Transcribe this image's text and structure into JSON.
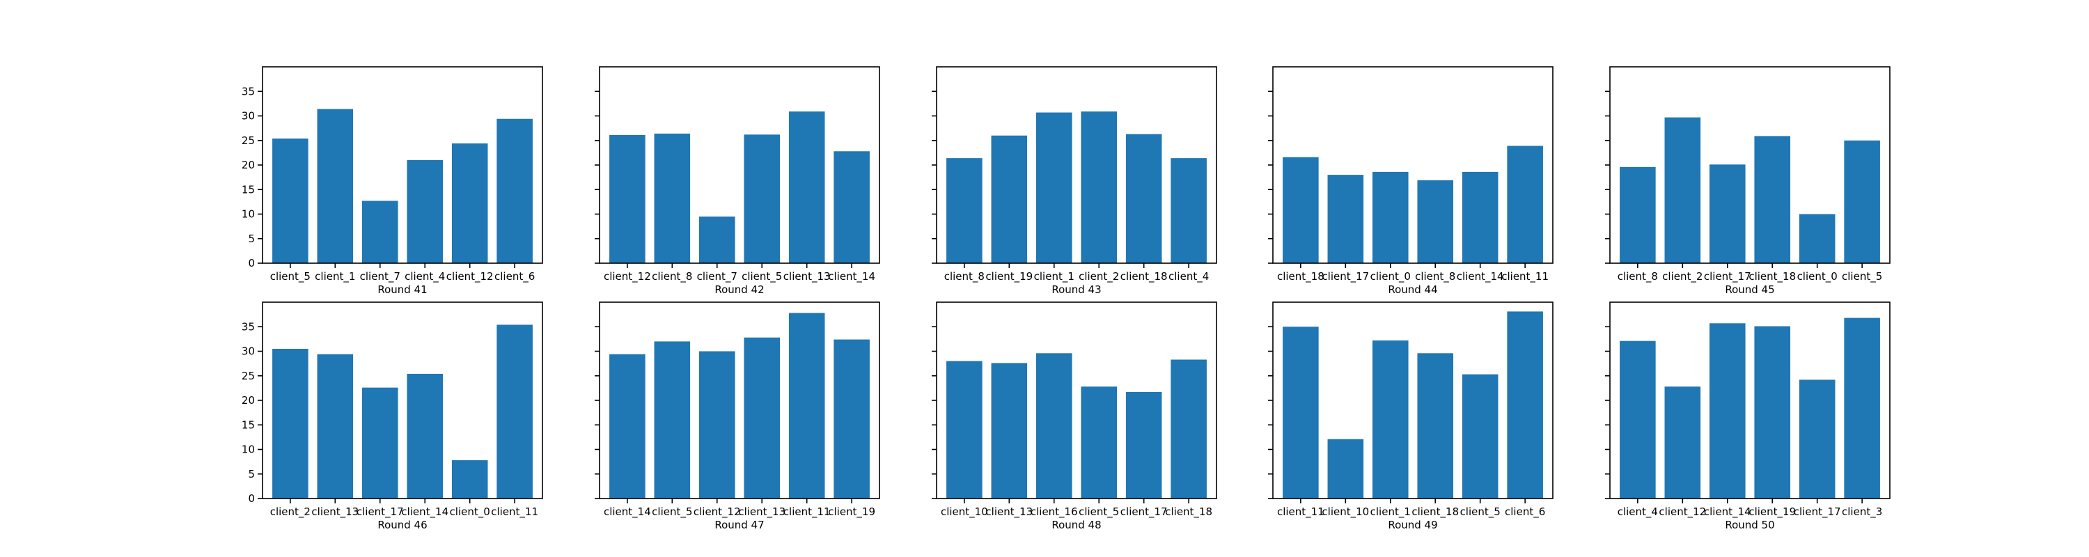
{
  "chart_data": [
    {
      "type": "bar",
      "xlabel": "Round 41",
      "categories": [
        "client_5",
        "client_1",
        "client_7",
        "client_4",
        "client_12",
        "client_6"
      ],
      "values": [
        25.4,
        31.4,
        12.7,
        21.0,
        24.4,
        29.4
      ],
      "ylim": [
        0,
        40
      ],
      "yticks": [
        0,
        5,
        10,
        15,
        20,
        25,
        30,
        35
      ],
      "show_ytick_labels": true
    },
    {
      "type": "bar",
      "xlabel": "Round 42",
      "categories": [
        "client_12",
        "client_8",
        "client_7",
        "client_5",
        "client_13",
        "client_14"
      ],
      "values": [
        26.1,
        26.4,
        9.5,
        26.2,
        30.9,
        22.8
      ],
      "ylim": [
        0,
        40
      ],
      "yticks": [
        0,
        5,
        10,
        15,
        20,
        25,
        30,
        35
      ],
      "show_ytick_labels": false
    },
    {
      "type": "bar",
      "xlabel": "Round 43",
      "categories": [
        "client_8",
        "client_19",
        "client_1",
        "client_2",
        "client_18",
        "client_4"
      ],
      "values": [
        21.4,
        26.0,
        30.7,
        30.9,
        26.3,
        21.4
      ],
      "ylim": [
        0,
        40
      ],
      "yticks": [
        0,
        5,
        10,
        15,
        20,
        25,
        30,
        35
      ],
      "show_ytick_labels": false
    },
    {
      "type": "bar",
      "xlabel": "Round 44",
      "categories": [
        "client_18",
        "client_17",
        "client_0",
        "client_8",
        "client_14",
        "client_11"
      ],
      "values": [
        21.6,
        18.0,
        18.6,
        16.9,
        18.6,
        23.9
      ],
      "ylim": [
        0,
        40
      ],
      "yticks": [
        0,
        5,
        10,
        15,
        20,
        25,
        30,
        35
      ],
      "show_ytick_labels": false
    },
    {
      "type": "bar",
      "xlabel": "Round 45",
      "categories": [
        "client_8",
        "client_2",
        "client_17",
        "client_18",
        "client_0",
        "client_5"
      ],
      "values": [
        19.6,
        29.7,
        20.1,
        25.9,
        10.0,
        25.0
      ],
      "ylim": [
        0,
        40
      ],
      "yticks": [
        0,
        5,
        10,
        15,
        20,
        25,
        30,
        35
      ],
      "show_ytick_labels": false
    },
    {
      "type": "bar",
      "xlabel": "Round 46",
      "categories": [
        "client_2",
        "client_13",
        "client_17",
        "client_14",
        "client_0",
        "client_11"
      ],
      "values": [
        30.5,
        29.4,
        22.6,
        25.4,
        7.8,
        35.4
      ],
      "ylim": [
        0,
        40
      ],
      "yticks": [
        0,
        5,
        10,
        15,
        20,
        25,
        30,
        35
      ],
      "show_ytick_labels": true
    },
    {
      "type": "bar",
      "xlabel": "Round 47",
      "categories": [
        "client_14",
        "client_5",
        "client_12",
        "client_13",
        "client_11",
        "client_19"
      ],
      "values": [
        29.4,
        32.0,
        30.0,
        32.8,
        37.8,
        32.4
      ],
      "ylim": [
        0,
        40
      ],
      "yticks": [
        0,
        5,
        10,
        15,
        20,
        25,
        30,
        35
      ],
      "show_ytick_labels": false
    },
    {
      "type": "bar",
      "xlabel": "Round 48",
      "categories": [
        "client_10",
        "client_13",
        "client_16",
        "client_5",
        "client_17",
        "client_18"
      ],
      "values": [
        28.0,
        27.6,
        29.6,
        22.8,
        21.7,
        28.3
      ],
      "ylim": [
        0,
        40
      ],
      "yticks": [
        0,
        5,
        10,
        15,
        20,
        25,
        30,
        35
      ],
      "show_ytick_labels": false
    },
    {
      "type": "bar",
      "xlabel": "Round 49",
      "categories": [
        "client_11",
        "client_10",
        "client_1",
        "client_18",
        "client_5",
        "client_6"
      ],
      "values": [
        35.0,
        12.1,
        32.2,
        29.6,
        25.3,
        38.1
      ],
      "ylim": [
        0,
        40
      ],
      "yticks": [
        0,
        5,
        10,
        15,
        20,
        25,
        30,
        35
      ],
      "show_ytick_labels": false
    },
    {
      "type": "bar",
      "xlabel": "Round 50",
      "categories": [
        "client_4",
        "client_12",
        "client_14",
        "client_19",
        "client_17",
        "client_3"
      ],
      "values": [
        32.1,
        22.8,
        35.7,
        35.1,
        24.2,
        36.8
      ],
      "ylim": [
        0,
        40
      ],
      "yticks": [
        0,
        5,
        10,
        15,
        20,
        25,
        30,
        35
      ],
      "show_ytick_labels": false
    }
  ],
  "colors": {
    "bar": "#1f77b4",
    "axis": "#000000",
    "background": "#ffffff"
  }
}
